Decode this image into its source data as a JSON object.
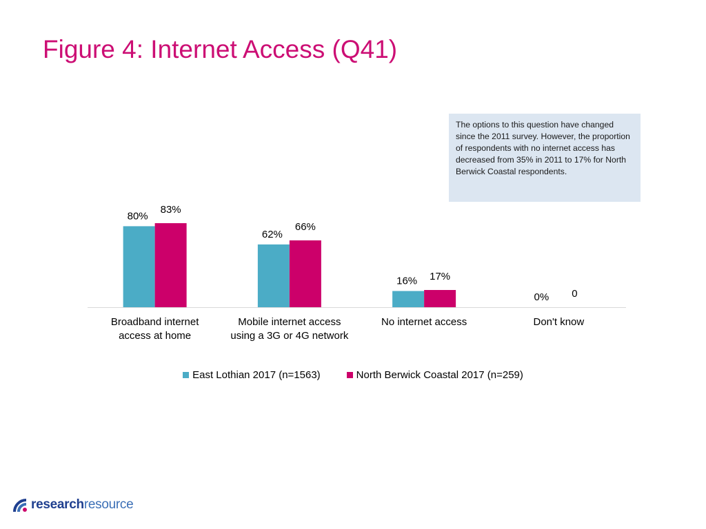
{
  "title": "Figure 4: Internet Access (Q41)",
  "note": "The options to this question have changed since the 2011 survey. However, the proportion of respondents with no internet access has decreased from 35% in 2011 to 17% for North Berwick Coastal respondents.",
  "logo": {
    "part1": "research",
    "part2": "resource"
  },
  "colors": {
    "title": "#cc0e74",
    "series1": "#4bacc6",
    "series2": "#cc006a",
    "axis": "#d9d9d9"
  },
  "chart_data": {
    "type": "bar",
    "categories": [
      [
        "Broadband internet",
        "access at home"
      ],
      [
        "Mobile internet access",
        "using a 3G or 4G network"
      ],
      [
        "No internet access"
      ],
      [
        "Don't know"
      ]
    ],
    "series": [
      {
        "name": "East Lothian 2017 (n=1563)",
        "values": [
          80,
          62,
          16,
          0
        ],
        "labels": [
          "80%",
          "62%",
          "16%",
          "0%"
        ]
      },
      {
        "name": "North Berwick Coastal 2017 (n=259)",
        "values": [
          83,
          66,
          17,
          0
        ],
        "labels": [
          "83%",
          "66%",
          "17%",
          "0"
        ]
      }
    ],
    "ylim": [
      0,
      100
    ],
    "legend": "bottom"
  }
}
